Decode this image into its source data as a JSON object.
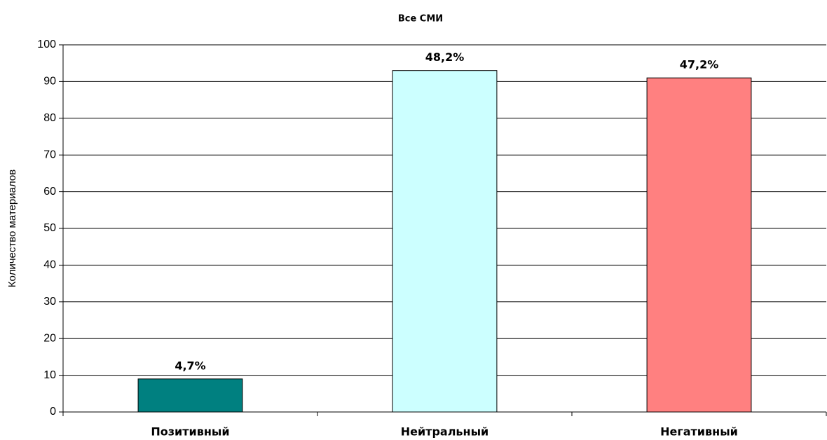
{
  "chart_data": {
    "type": "bar",
    "title": "Все СМИ",
    "y_label": "Количество материалов",
    "categories": [
      "Позитивный",
      "Нейтральный",
      "Негативный"
    ],
    "values": [
      9,
      93,
      91
    ],
    "percent_labels": [
      "4,7%",
      "48,2%",
      "47,2%"
    ],
    "colors": [
      "#008080",
      "#ccffff",
      "#ff8080"
    ],
    "ylim": [
      0,
      100
    ],
    "yticks": [
      0,
      10,
      20,
      30,
      40,
      50,
      60,
      70,
      80,
      90,
      100
    ],
    "grid": true
  }
}
